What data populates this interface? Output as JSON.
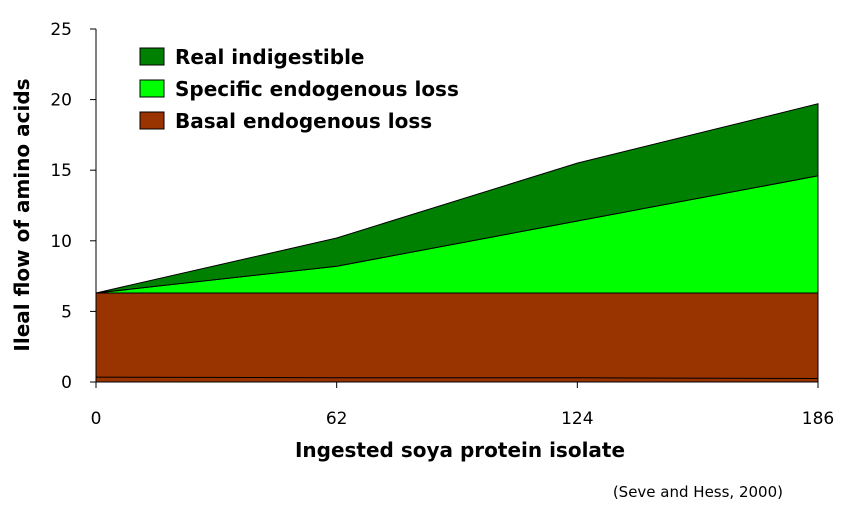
{
  "chart_data": {
    "type": "area",
    "stacked": true,
    "x": [
      0,
      62,
      124,
      186
    ],
    "xlabel": "Ingested soya protein isolate",
    "ylabel": "Ileal flow of amino acids",
    "ylim": [
      0,
      25
    ],
    "yticks": [
      0,
      5,
      10,
      15,
      20,
      25
    ],
    "xticks": [
      0,
      62,
      124,
      186
    ],
    "series": [
      {
        "name": "Basal endogenous loss",
        "values": [
          6.3,
          6.3,
          6.3,
          6.3
        ],
        "color": "#993300"
      },
      {
        "name": "Specific endogenous loss",
        "values": [
          0.0,
          1.9,
          5.1,
          8.3
        ],
        "color": "#00ff00"
      },
      {
        "name": "Real indigestible",
        "values": [
          0.0,
          2.0,
          4.1,
          5.1
        ],
        "color": "#008000"
      }
    ],
    "baseline_line": [
      0.35,
      0.3,
      0.3,
      0.25
    ],
    "legend_order": [
      "Real indigestible",
      "Specific endogenous loss",
      "Basal endogenous loss"
    ],
    "legend_position": "top-left",
    "grid": false,
    "source": "(Seve and Hess, 2000)"
  }
}
